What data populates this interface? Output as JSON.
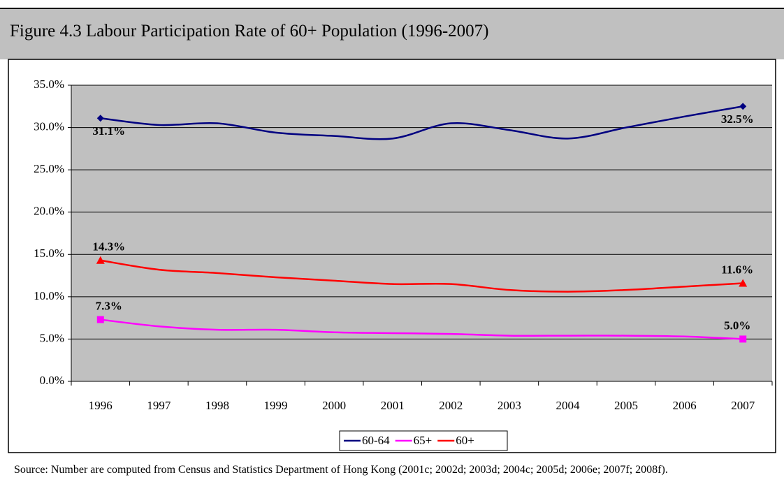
{
  "chart_data": {
    "type": "line",
    "title": "Figure 4.3 Labour Participation Rate of 60+ Population (1996-2007)",
    "categories": [
      "1996",
      "1997",
      "1998",
      "1999",
      "2000",
      "2001",
      "2002",
      "2003",
      "2004",
      "2005",
      "2006",
      "2007"
    ],
    "series": [
      {
        "name": "60-64",
        "color": "#000080",
        "marker": "diamond",
        "values": [
          31.1,
          30.3,
          30.5,
          29.4,
          29.0,
          28.7,
          30.5,
          29.7,
          28.7,
          30.0,
          31.3,
          32.5
        ],
        "value_labels": [
          "31.1%",
          null,
          null,
          null,
          null,
          null,
          null,
          null,
          null,
          null,
          null,
          "32.5%"
        ]
      },
      {
        "name": "65+",
        "color": "#ff00ff",
        "marker": "square",
        "values": [
          7.3,
          6.5,
          6.1,
          6.1,
          5.8,
          5.7,
          5.6,
          5.4,
          5.4,
          5.4,
          5.3,
          5.0
        ],
        "value_labels": [
          "7.3%",
          null,
          null,
          null,
          null,
          null,
          null,
          null,
          null,
          null,
          null,
          "5.0%"
        ]
      },
      {
        "name": "60+",
        "color": "#ff0000",
        "marker": "triangle",
        "values": [
          14.3,
          13.2,
          12.8,
          12.3,
          11.9,
          11.5,
          11.5,
          10.8,
          10.6,
          10.8,
          11.2,
          11.6
        ],
        "value_labels": [
          "14.3%",
          null,
          null,
          null,
          null,
          null,
          null,
          null,
          null,
          null,
          null,
          "11.6%"
        ]
      }
    ],
    "ylim": [
      0,
      35
    ],
    "yticks": [
      {
        "value": 0,
        "label": "0.0%"
      },
      {
        "value": 5,
        "label": "5.0%"
      },
      {
        "value": 10,
        "label": "10.0%"
      },
      {
        "value": 15,
        "label": "15.0%"
      },
      {
        "value": 20,
        "label": "20.0%"
      },
      {
        "value": 25,
        "label": "25.0%"
      },
      {
        "value": 30,
        "label": "30.0%"
      },
      {
        "value": 35,
        "label": "35.0%"
      }
    ],
    "grid": true,
    "legend": "bottom",
    "plot_background": "#c0c0c0",
    "source": "Source: Number are computed from Census and Statistics Department of Hong Kong (2001c; 2002d; 2003d; 2004c; 2005d; 2006e; 2007f; 2008f)."
  }
}
